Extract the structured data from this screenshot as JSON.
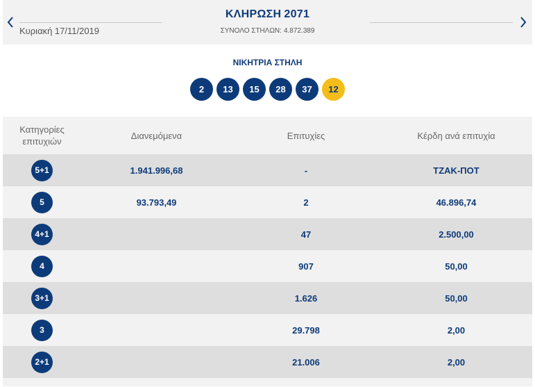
{
  "header": {
    "title_prefix": "ΚΛΗΡΩΣΗ",
    "draw_number": "2071",
    "date": "Κυριακή 17/11/2019",
    "total_columns_label": "ΣΥΝΟΛΟ ΣΤΗΛΩΝ:",
    "total_columns_value": "4.872.389",
    "prev_icon": "chevron-left-icon",
    "next_icon": "chevron-right-icon"
  },
  "winning_column": {
    "label": "ΝΙΚΗΤΡΙΑ ΣΤΗΛΗ",
    "numbers": [
      "2",
      "13",
      "15",
      "28",
      "37"
    ],
    "joker": "12"
  },
  "table": {
    "headers": {
      "category": "Κατηγορίες επιτυχιών",
      "distributed": "Διανεμόμενα",
      "winners": "Επιτυχίες",
      "prize": "Κέρδη ανά επιτυχία"
    },
    "rows": [
      {
        "category": "5+1",
        "distributed": "1.941.996,68",
        "winners": "-",
        "prize": "ΤΖΑΚ-ΠΟΤ"
      },
      {
        "category": "5",
        "distributed": "93.793,49",
        "winners": "2",
        "prize": "46.896,74"
      },
      {
        "category": "4+1",
        "distributed": "",
        "winners": "47",
        "prize": "2.500,00"
      },
      {
        "category": "4",
        "distributed": "",
        "winners": "907",
        "prize": "50,00"
      },
      {
        "category": "3+1",
        "distributed": "",
        "winners": "1.626",
        "prize": "50,00"
      },
      {
        "category": "3",
        "distributed": "",
        "winners": "29.798",
        "prize": "2,00"
      },
      {
        "category": "2+1",
        "distributed": "",
        "winners": "21.006",
        "prize": "2,00"
      }
    ]
  },
  "colors": {
    "primary": "#0d3b7a",
    "joker": "#f4bd19",
    "row_dark": "#dedede",
    "row_light": "#f2f2f2"
  }
}
